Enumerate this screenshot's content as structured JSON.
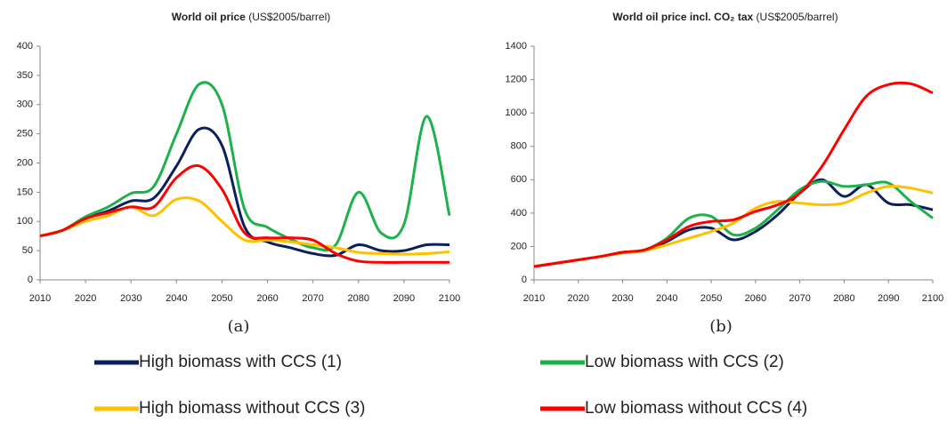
{
  "chart_data": [
    {
      "type": "line",
      "title": "World oil price",
      "title_unit": "(US$2005/barrel)",
      "caption": "(a)",
      "x": [
        2010,
        2015,
        2020,
        2025,
        2030,
        2035,
        2040,
        2045,
        2050,
        2055,
        2060,
        2065,
        2070,
        2075,
        2080,
        2085,
        2090,
        2095,
        2100
      ],
      "xlim": [
        2010,
        2100
      ],
      "xticks": [
        2010,
        2020,
        2030,
        2040,
        2050,
        2060,
        2070,
        2080,
        2090,
        2100
      ],
      "ylim": [
        0,
        400
      ],
      "yticks": [
        0,
        50,
        100,
        150,
        200,
        250,
        300,
        350,
        400
      ],
      "grid": false,
      "series": [
        {
          "name": "High biomass with CCS (1)",
          "color": "#0b1f5c",
          "values": [
            75,
            85,
            105,
            118,
            135,
            140,
            195,
            258,
            230,
            90,
            65,
            55,
            45,
            42,
            60,
            50,
            50,
            60,
            60
          ]
        },
        {
          "name": "Low biomass with CCS (2)",
          "color": "#1db14b",
          "values": [
            75,
            85,
            108,
            125,
            148,
            160,
            250,
            335,
            300,
            120,
            90,
            70,
            55,
            60,
            150,
            80,
            95,
            280,
            110
          ]
        },
        {
          "name": "High biomass without CCS (3)",
          "color": "#ffc000",
          "values": [
            75,
            85,
            100,
            110,
            125,
            110,
            138,
            135,
            100,
            68,
            68,
            65,
            60,
            55,
            47,
            45,
            44,
            45,
            48
          ]
        },
        {
          "name": "Low biomass without CCS (4)",
          "color": "#ff0000",
          "values": [
            75,
            85,
            105,
            115,
            125,
            125,
            175,
            195,
            155,
            80,
            72,
            72,
            68,
            45,
            32,
            30,
            30,
            30,
            30
          ]
        }
      ]
    },
    {
      "type": "line",
      "title": "World oil price incl. CO₂ tax",
      "title_unit": "(US$2005/barrel)",
      "caption": "(b)",
      "x": [
        2010,
        2015,
        2020,
        2025,
        2030,
        2035,
        2040,
        2045,
        2050,
        2055,
        2060,
        2065,
        2070,
        2075,
        2080,
        2085,
        2090,
        2095,
        2100
      ],
      "xlim": [
        2010,
        2100
      ],
      "xticks": [
        2010,
        2020,
        2030,
        2040,
        2050,
        2060,
        2070,
        2080,
        2090,
        2100
      ],
      "ylim": [
        0,
        1400
      ],
      "yticks": [
        0,
        200,
        400,
        600,
        800,
        1000,
        1200,
        1400
      ],
      "grid": false,
      "series": [
        {
          "color": "#0b1f5c",
          "values": [
            80,
            100,
            120,
            140,
            165,
            175,
            230,
            300,
            310,
            240,
            290,
            390,
            520,
            600,
            500,
            570,
            460,
            450,
            420
          ]
        },
        {
          "color": "#1db14b",
          "values": [
            80,
            100,
            120,
            140,
            165,
            180,
            250,
            370,
            380,
            270,
            310,
            420,
            540,
            590,
            560,
            570,
            580,
            470,
            370
          ]
        },
        {
          "color": "#ffc000",
          "values": [
            80,
            100,
            120,
            140,
            160,
            175,
            210,
            250,
            290,
            340,
            430,
            470,
            460,
            450,
            460,
            520,
            560,
            550,
            520
          ]
        },
        {
          "color": "#ff0000",
          "values": [
            80,
            100,
            120,
            140,
            165,
            180,
            240,
            320,
            350,
            360,
            410,
            450,
            520,
            680,
            900,
            1100,
            1170,
            1175,
            1120
          ]
        }
      ]
    }
  ]
}
